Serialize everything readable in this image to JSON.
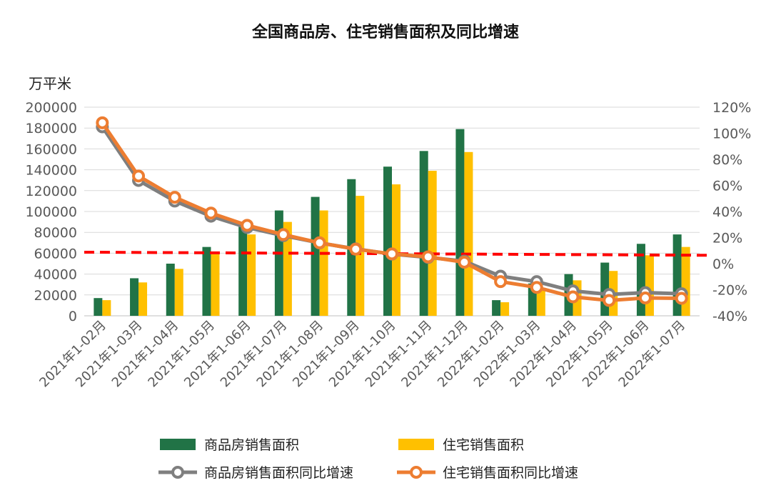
{
  "chart_data": {
    "type": "bar",
    "title": "全国商品房、住宅销售面积及同比增速",
    "y_left_unit": "万平米",
    "categories": [
      "2021年1-02月",
      "2021年1-03月",
      "2021年1-04月",
      "2021年1-05月",
      "2021年1-06月",
      "2021年1-07月",
      "2021年1-08月",
      "2021年1-09月",
      "2021年1-10月",
      "2021年1-11月",
      "2021年1-12月",
      "2022年1-02月",
      "2022年1-03月",
      "2022年1-04月",
      "2022年1-05月",
      "2022年1-06月",
      "2022年1-07月"
    ],
    "ylim_left": [
      0,
      200000
    ],
    "yticks_left": [
      "200000",
      "180000",
      "160000",
      "140000",
      "120000",
      "100000",
      "80000",
      "60000",
      "40000",
      "20000",
      "0"
    ],
    "ylim_right": [
      -40,
      120
    ],
    "yticks_right": [
      "120%",
      "100%",
      "80%",
      "60%",
      "40%",
      "20%",
      "0%",
      "-20%",
      "-40%"
    ],
    "bar_series": [
      {
        "name": "商品房销售面积",
        "color": "#217346",
        "values": [
          17000,
          36000,
          50000,
          66000,
          89000,
          101000,
          114000,
          131000,
          143000,
          158000,
          179000,
          15000,
          31000,
          40000,
          51000,
          69000,
          78000
        ]
      },
      {
        "name": "住宅销售面积",
        "color": "#FFC000",
        "values": [
          15000,
          32000,
          45000,
          59000,
          78000,
          90000,
          101000,
          115000,
          126000,
          139000,
          157000,
          13000,
          26000,
          34000,
          43000,
          58000,
          66000
        ]
      }
    ],
    "line_series": [
      {
        "name": "商品房销售面积同比增速",
        "color": "#7F7F7F",
        "values": [
          104.9,
          63.8,
          48.0,
          36.4,
          27.7,
          21.5,
          15.9,
          11.3,
          7.3,
          4.8,
          1.9,
          -9.6,
          -13.8,
          -20.9,
          -23.6,
          -22.2,
          -23.1
        ]
      },
      {
        "name": "住宅销售面积同比增速",
        "color": "#ED7D31",
        "values": [
          108.0,
          67.2,
          50.9,
          38.8,
          29.4,
          22.3,
          16.0,
          11.1,
          7.5,
          5.2,
          1.1,
          -13.8,
          -18.2,
          -25.5,
          -28.2,
          -26.3,
          -26.6
        ]
      }
    ],
    "reference_line": {
      "style": "dashed",
      "color": "#FF0000",
      "value_left_start": 61000,
      "value_left_end": 58000
    },
    "grid": true,
    "legend_position": "bottom"
  }
}
